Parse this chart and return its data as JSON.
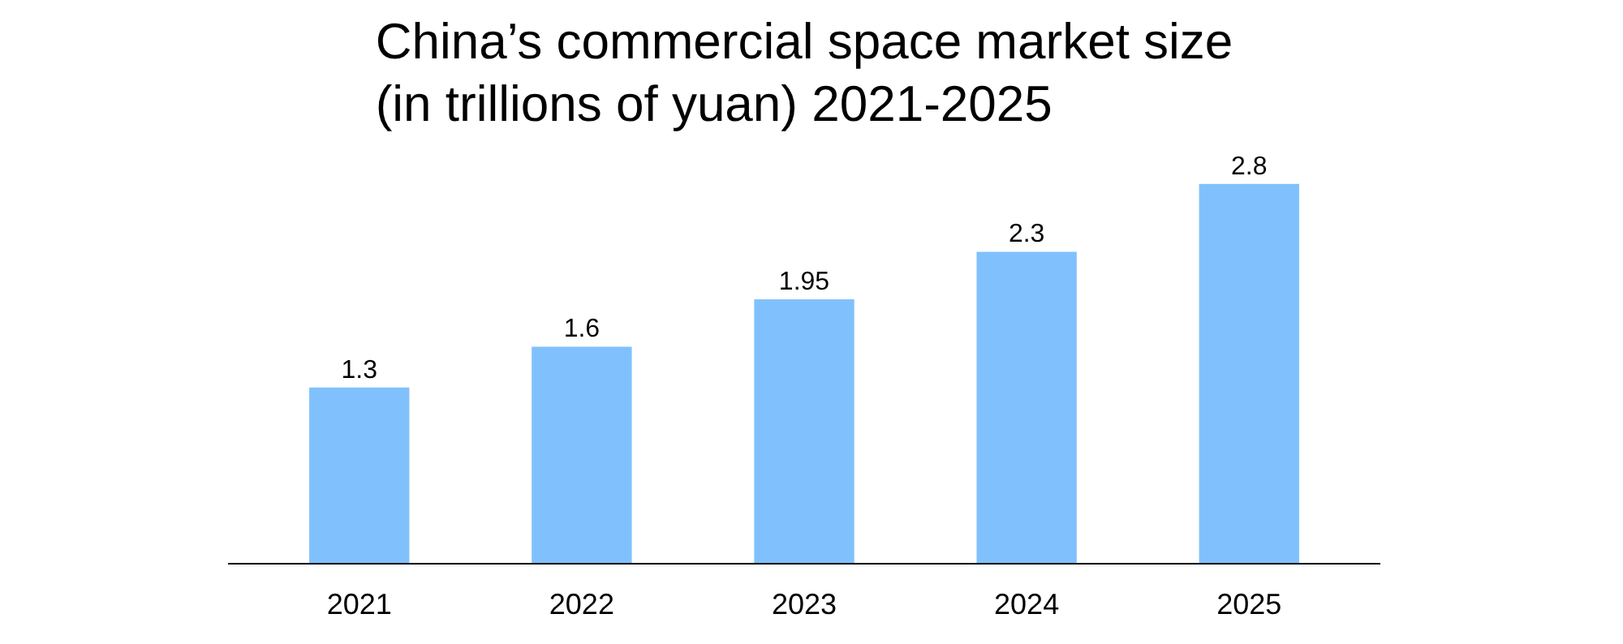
{
  "chart_data": {
    "type": "bar",
    "title": "China’s commercial space market size\n(in trillions of yuan) 2021-2025",
    "categories": [
      "2021",
      "2022",
      "2023",
      "2024",
      "2025"
    ],
    "values": [
      1.3,
      1.6,
      1.95,
      2.3,
      2.8
    ],
    "color": "#80c1fd",
    "data_labels": true
  }
}
